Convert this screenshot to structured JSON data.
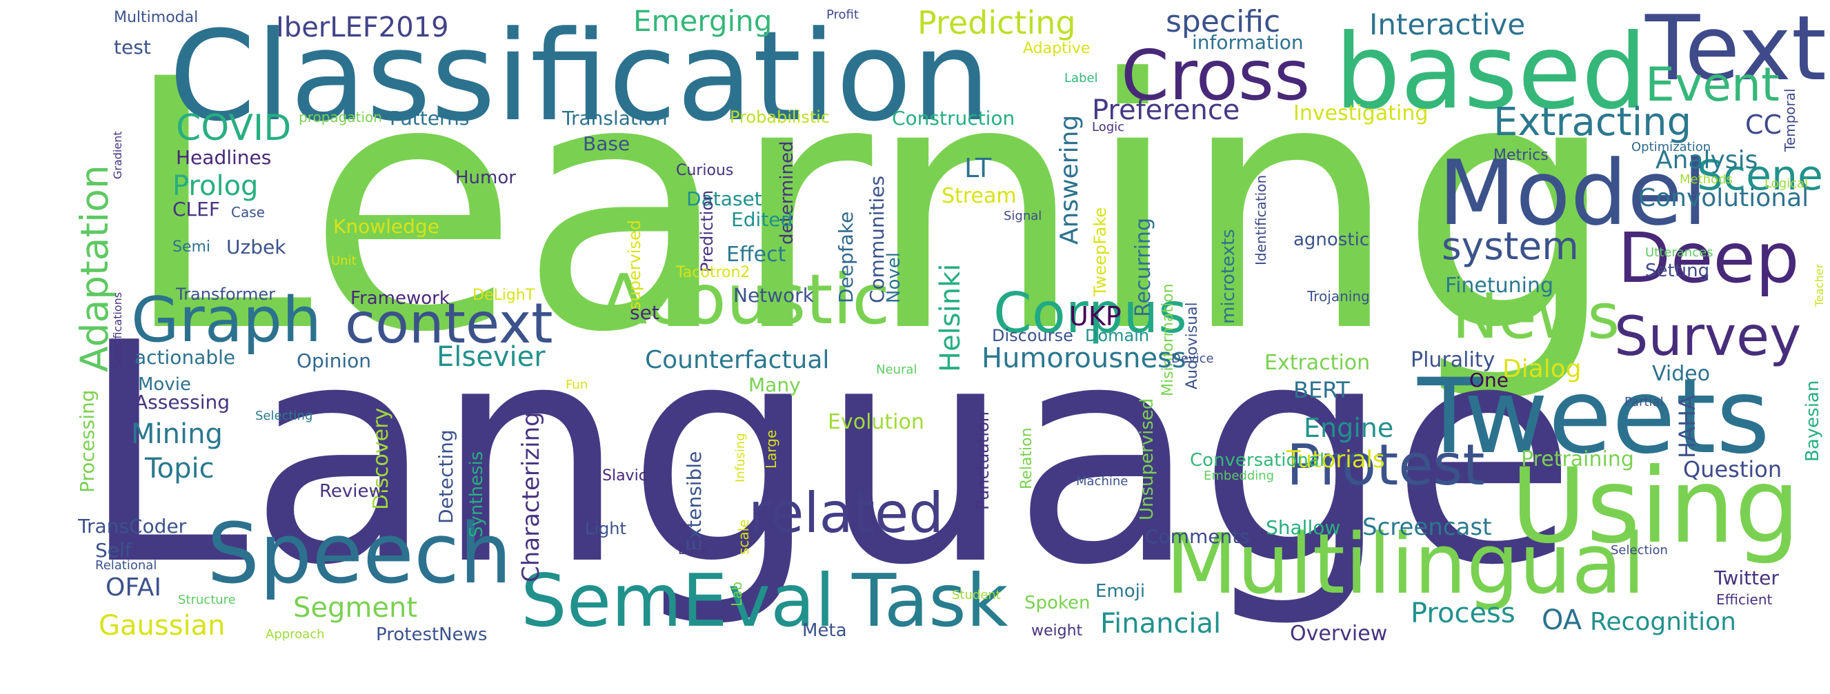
{
  "palette": [
    "#440154",
    "#46337f",
    "#3b528b",
    "#2c728e",
    "#21918c",
    "#28ae80",
    "#5ec962",
    "#addc30",
    "#dde318"
  ],
  "words": [
    {
      "text": "Learning",
      "color": "#7ad151"
    },
    {
      "text": "Language",
      "color": "#443a83"
    },
    {
      "text": "Classification",
      "color": "#2c728e"
    },
    {
      "text": "based",
      "color": "#35b779"
    },
    {
      "text": "Text",
      "color": "#3e4a89"
    },
    {
      "text": "Cross",
      "color": "#482878"
    },
    {
      "text": "Model",
      "color": "#3b528b"
    },
    {
      "text": "Tweets",
      "color": "#2c728e"
    },
    {
      "text": "Multilingual",
      "color": "#7ad151"
    },
    {
      "text": "Using",
      "color": "#7ad151"
    },
    {
      "text": "Speech",
      "color": "#2c728e"
    },
    {
      "text": "Task",
      "color": "#287d8e"
    },
    {
      "text": "SemEval",
      "color": "#21918c"
    },
    {
      "text": "Acoustic",
      "color": "#7ad151"
    },
    {
      "text": "Graph",
      "color": "#2c728e"
    },
    {
      "text": "context",
      "color": "#3b528b"
    },
    {
      "text": "related",
      "color": "#433e85"
    },
    {
      "text": "Protest",
      "color": "#3b528b"
    },
    {
      "text": "News",
      "color": "#7ad151"
    },
    {
      "text": "Deep",
      "color": "#482878"
    },
    {
      "text": "Survey",
      "color": "#472d7b"
    },
    {
      "text": "Corpus",
      "color": "#22a884"
    },
    {
      "text": "Event",
      "color": "#35b779"
    },
    {
      "text": "Extracting",
      "color": "#2a788e"
    },
    {
      "text": "Scene",
      "color": "#21918c"
    },
    {
      "text": "system",
      "color": "#3b528b"
    },
    {
      "text": "Adaptation",
      "color": "#5ec962"
    },
    {
      "text": "COVID",
      "color": "#28ae80"
    },
    {
      "text": "Emerging",
      "color": "#35b779"
    },
    {
      "text": "Predicting",
      "color": "#bddf26"
    },
    {
      "text": "specific",
      "color": "#3b528b"
    },
    {
      "text": "Interactive",
      "color": "#2c728e"
    },
    {
      "text": "IberLEF2019",
      "color": "#414487"
    },
    {
      "text": "Multimodal",
      "color": "#3b528b"
    },
    {
      "text": "test",
      "color": "#3b528b"
    },
    {
      "text": "Profit",
      "color": "#3e4989"
    },
    {
      "text": "information",
      "color": "#2c728e"
    },
    {
      "text": "Adaptive",
      "color": "#d8e219"
    },
    {
      "text": "Label",
      "color": "#35b779"
    },
    {
      "text": "Temporal",
      "color": "#3e4989"
    },
    {
      "text": "propagation",
      "color": "#7ad151"
    },
    {
      "text": "Patterns",
      "color": "#2c728e"
    },
    {
      "text": "Translation",
      "color": "#2c728e"
    },
    {
      "text": "Probabilistic",
      "color": "#bddf26"
    },
    {
      "text": "Construction",
      "color": "#28ae80"
    },
    {
      "text": "Preference",
      "color": "#443983"
    },
    {
      "text": "Investigating",
      "color": "#d2e21b"
    },
    {
      "text": "Logic",
      "color": "#46337f"
    },
    {
      "text": "CC",
      "color": "#3e4a89"
    },
    {
      "text": "Gradient",
      "color": "#46337f"
    },
    {
      "text": "Headlines",
      "color": "#482878"
    },
    {
      "text": "Base",
      "color": "#3b528b"
    },
    {
      "text": "Analysis",
      "color": "#2a788e"
    },
    {
      "text": "Metrics",
      "color": "#3e4a89"
    },
    {
      "text": "Optimization",
      "color": "#31688e"
    },
    {
      "text": "Prolog",
      "color": "#28ae80"
    },
    {
      "text": "Humor",
      "color": "#46337f"
    },
    {
      "text": "Curious",
      "color": "#46337f"
    },
    {
      "text": "determined",
      "color": "#46337f"
    },
    {
      "text": "LT",
      "color": "#2c728e"
    },
    {
      "text": "Convolutional",
      "color": "#2c728e"
    },
    {
      "text": "Methods",
      "color": "#a0da39"
    },
    {
      "text": "Logical",
      "color": "#a0da39"
    },
    {
      "text": "CLEF",
      "color": "#46337f"
    },
    {
      "text": "Case",
      "color": "#3b528b"
    },
    {
      "text": "Dataset",
      "color": "#21918c"
    },
    {
      "text": "Stream",
      "color": "#d8e219"
    },
    {
      "text": "Signal",
      "color": "#3e4a89"
    },
    {
      "text": "Knowledge",
      "color": "#d8e219"
    },
    {
      "text": "Edited",
      "color": "#21918c"
    },
    {
      "text": "Prediction",
      "color": "#46337f"
    },
    {
      "text": "supervised",
      "color": "#d8e219"
    },
    {
      "text": "Uzbek",
      "color": "#3b528b"
    },
    {
      "text": "Semi",
      "color": "#2c728e"
    },
    {
      "text": "Unit",
      "color": "#d8e219"
    },
    {
      "text": "Effect",
      "color": "#2a788e"
    },
    {
      "text": "Tacotron2",
      "color": "#d8e219"
    },
    {
      "text": "Deepfake",
      "color": "#31688e"
    },
    {
      "text": "Communities",
      "color": "#3b528b"
    },
    {
      "text": "Novel",
      "color": "#2c728e"
    },
    {
      "text": "Helsinki",
      "color": "#28ae80"
    },
    {
      "text": "Answering",
      "color": "#2c728e"
    },
    {
      "text": "TweepFake",
      "color": "#d8e219"
    },
    {
      "text": "Recurring",
      "color": "#2c728e"
    },
    {
      "text": "Misinformation",
      "color": "#7ad151"
    },
    {
      "text": "Audiovisual",
      "color": "#3b528b"
    },
    {
      "text": "microtexts",
      "color": "#2c728e"
    },
    {
      "text": "Identification",
      "color": "#3e4a89"
    },
    {
      "text": "agnostic",
      "color": "#3b528b"
    },
    {
      "text": "Finetuning",
      "color": "#2a788e"
    },
    {
      "text": "Setting",
      "color": "#3e4a89"
    },
    {
      "text": "Utterances",
      "color": "#5ec962"
    },
    {
      "text": "Teacher",
      "color": "#c8e020"
    },
    {
      "text": "Trojaning",
      "color": "#3b528b"
    },
    {
      "text": "Transformer",
      "color": "#3b528b"
    },
    {
      "text": "Specifications",
      "color": "#46337f"
    },
    {
      "text": "Framework",
      "color": "#482878"
    },
    {
      "text": "DeLighT",
      "color": "#d8e219"
    },
    {
      "text": "set",
      "color": "#482878"
    },
    {
      "text": "Network",
      "color": "#3b528b"
    },
    {
      "text": "UKP",
      "color": "#440154"
    },
    {
      "text": "Discourse",
      "color": "#3b528b"
    },
    {
      "text": "Domain",
      "color": "#21918c"
    },
    {
      "text": "Humorousness",
      "color": "#2a788e"
    },
    {
      "text": "Elsevier",
      "color": "#21918c"
    },
    {
      "text": "Counterfactual",
      "color": "#2a788e"
    },
    {
      "text": "actionable",
      "color": "#2c728e"
    },
    {
      "text": "Opinion",
      "color": "#31688e"
    },
    {
      "text": "Extraction",
      "color": "#7ad151"
    },
    {
      "text": "Plurality",
      "color": "#3b528b"
    },
    {
      "text": "Device",
      "color": "#3b528b"
    },
    {
      "text": "Dialog",
      "color": "#dde318"
    },
    {
      "text": "Video",
      "color": "#2c728e"
    },
    {
      "text": "One",
      "color": "#440154"
    },
    {
      "text": "BERT",
      "color": "#2c728e"
    },
    {
      "text": "Neural",
      "color": "#5ec962"
    },
    {
      "text": "Movie",
      "color": "#2c728e"
    },
    {
      "text": "Many",
      "color": "#7ad151"
    },
    {
      "text": "HAHA",
      "color": "#3b528b"
    },
    {
      "text": "Partial",
      "color": "#3b528b"
    },
    {
      "text": "Bayesian",
      "color": "#28ae80"
    },
    {
      "text": "Assessing",
      "color": "#46337f"
    },
    {
      "text": "Fun",
      "color": "#d8e219"
    },
    {
      "text": "Selecting",
      "color": "#2a788e"
    },
    {
      "text": "Mining",
      "color": "#2a788e"
    },
    {
      "text": "Topic",
      "color": "#2a788e"
    },
    {
      "text": "Discovery",
      "color": "#a0da39"
    },
    {
      "text": "Characterizing",
      "color": "#46337f"
    },
    {
      "text": "Evolution",
      "color": "#a0da39"
    },
    {
      "text": "Engine",
      "color": "#21918c"
    },
    {
      "text": "Tutorials",
      "color": "#d8e219"
    },
    {
      "text": "Pretraining",
      "color": "#7ad151"
    },
    {
      "text": "Question",
      "color": "#3e4a89"
    },
    {
      "text": "Processing",
      "color": "#7ad151"
    },
    {
      "text": "Synthesis",
      "color": "#28ae80"
    },
    {
      "text": "Detecting",
      "color": "#3b528b"
    },
    {
      "text": "Infusing",
      "color": "#d8e219"
    },
    {
      "text": "Large",
      "color": "#d8e219"
    },
    {
      "text": "Extensible",
      "color": "#3b528b"
    },
    {
      "text": "Slavic",
      "color": "#482878"
    },
    {
      "text": "Punctuation",
      "color": "#46337f"
    },
    {
      "text": "Relation",
      "color": "#7ad151"
    },
    {
      "text": "Machine",
      "color": "#3b528b"
    },
    {
      "text": "Unsupervised",
      "color": "#7ad151"
    },
    {
      "text": "Conversational",
      "color": "#35b779"
    },
    {
      "text": "Embedding",
      "color": "#5ec962"
    },
    {
      "text": "Review",
      "color": "#46337f"
    },
    {
      "text": "TransCoder",
      "color": "#3b528b"
    },
    {
      "text": "Self",
      "color": "#3b528b"
    },
    {
      "text": "Light",
      "color": "#3b528b"
    },
    {
      "text": "Back",
      "color": "#46337f"
    },
    {
      "text": "scale",
      "color": "#d8e219"
    },
    {
      "text": "Lab",
      "color": "#7ad151"
    },
    {
      "text": "Comments",
      "color": "#3e4a89"
    },
    {
      "text": "Shallow",
      "color": "#28ae80"
    },
    {
      "text": "Screencast",
      "color": "#2a788e"
    },
    {
      "text": "Relational",
      "color": "#3b528b"
    },
    {
      "text": "Structure",
      "color": "#5ec962"
    },
    {
      "text": "OFAI",
      "color": "#3b528b"
    },
    {
      "text": "Segment",
      "color": "#7ad151"
    },
    {
      "text": "Student",
      "color": "#a0da39"
    },
    {
      "text": "Emoji",
      "color": "#2a788e"
    },
    {
      "text": "Selection",
      "color": "#3e4a89"
    },
    {
      "text": "Twitter",
      "color": "#46337f"
    },
    {
      "text": "Efficient",
      "color": "#46337f"
    },
    {
      "text": "Gaussian",
      "color": "#d8e219"
    },
    {
      "text": "Approach",
      "color": "#a0da39"
    },
    {
      "text": "ProtestNews",
      "color": "#3b528b"
    },
    {
      "text": "Meta",
      "color": "#3b528b"
    },
    {
      "text": "weight",
      "color": "#46337f"
    },
    {
      "text": "Spoken",
      "color": "#7ad151"
    },
    {
      "text": "Financial",
      "color": "#21918c"
    },
    {
      "text": "Overview",
      "color": "#46337f"
    },
    {
      "text": "Process",
      "color": "#21918c"
    },
    {
      "text": "OA",
      "color": "#2c728e"
    },
    {
      "text": "Recognition",
      "color": "#21918c"
    }
  ]
}
